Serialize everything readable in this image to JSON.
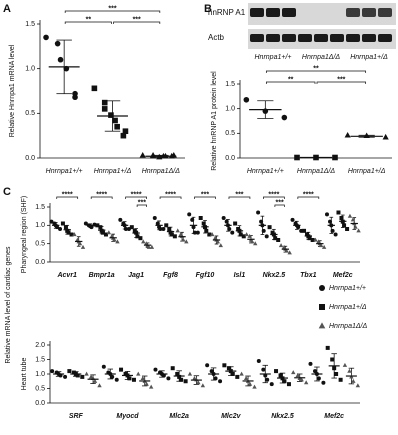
{
  "figure": {
    "panels": [
      "A",
      "B",
      "C"
    ],
    "shared_ylabel": "Relative mRNA level of cardiac genes"
  },
  "blot": {
    "rows": [
      "hnRNP A1",
      "Actb"
    ],
    "lanes": [
      "Hnrnpa1+/+",
      "Hnrnpa1Δ/Δ",
      "Hnrnpa1+/Δ"
    ]
  },
  "chart_data": [
    {
      "type": "dot",
      "ylabel": "Relative Hnrnpa1 mRNA level",
      "categories": [
        "Hnrnpa1+/+",
        "Hnrnpa1+/Δ",
        "Hnrnpa1Δ/Δ"
      ],
      "markers": [
        "circle",
        "square",
        "triangle"
      ],
      "color": "#111111",
      "values": [
        [
          1.35,
          1.28,
          1.1,
          1.0,
          0.72,
          0.68
        ],
        [
          0.78,
          0.62,
          0.55,
          0.48,
          0.42,
          0.35,
          0.3,
          0.25
        ],
        [
          0.03,
          0.02,
          0.03,
          0.01,
          0.02,
          0.02,
          0.03,
          0.02
        ]
      ],
      "means": [
        1.02,
        0.47,
        0.02
      ],
      "sds": [
        0.3,
        0.17,
        0.01
      ],
      "ylim": [
        0,
        1.5
      ],
      "yticks": [
        {
          "value": 0,
          "label": "0.0"
        },
        0.5,
        {
          "value": 1,
          "label": "1.0"
        },
        1.5
      ],
      "significance": [
        {
          "from": 0,
          "to": 1,
          "label": "**"
        },
        {
          "from": 0,
          "to": 2,
          "label": "***"
        },
        {
          "from": 1,
          "to": 2,
          "label": "***"
        }
      ]
    },
    {
      "type": "dot",
      "ylabel": "Relative hnRNP A1 protein level",
      "categories": [
        "Hnrnpa1+/+",
        "Hnrnpa1Δ/Δ",
        "Hnrnpa1+/Δ"
      ],
      "markers": [
        "circle",
        "square",
        "triangle"
      ],
      "color": "#111111",
      "values": [
        [
          1.18,
          0.95,
          0.82
        ],
        [
          0.01,
          0.01,
          0.01
        ],
        [
          0.46,
          0.45,
          0.42
        ]
      ],
      "means": [
        0.98,
        0.01,
        0.44
      ],
      "sds": [
        0.18,
        0,
        0.02
      ],
      "ylim": [
        0,
        1.5
      ],
      "yticks": [
        {
          "value": 0,
          "label": "0.0"
        },
        0.5,
        {
          "value": 1,
          "label": "1.0"
        },
        1.5
      ],
      "significance": [
        {
          "from": 0,
          "to": 1,
          "label": "**"
        },
        {
          "from": 0,
          "to": 2,
          "label": "**"
        },
        {
          "from": 1,
          "to": 2,
          "label": "***"
        }
      ]
    },
    {
      "type": "dot",
      "ylabel": "Pharyngeal region (SHF)",
      "legend": "right",
      "categories": [
        "Acvr1",
        "Bmpr1a",
        "Jag1",
        "Fgf8",
        "Fgf10",
        "Isl1",
        "Nkx2.5",
        "Tbx1",
        "Mef2c"
      ],
      "ylim": [
        0,
        1.5
      ],
      "yticks": [
        {
          "value": 0,
          "label": "0.0"
        },
        0.5,
        {
          "value": 1,
          "label": "1.0"
        },
        1.5
      ],
      "series": [
        {
          "name": "Hnrnpa1+/+",
          "marker": "circle",
          "color": "#111111",
          "values": [
            [
              1.1,
              1.05,
              1.0,
              0.95,
              0.9
            ],
            [
              1.05,
              1.0,
              0.98,
              0.95,
              1.02
            ],
            [
              1.15,
              1.05,
              1.0,
              0.9,
              0.9
            ],
            [
              1.2,
              1.05,
              0.95,
              0.9,
              0.9
            ],
            [
              1.3,
              1.15,
              0.95,
              0.8,
              0.8
            ],
            [
              1.2,
              1.1,
              1.0,
              0.9,
              0.8
            ],
            [
              1.35,
              1.1,
              1.0,
              0.85,
              0.7
            ],
            [
              1.15,
              1.05,
              1.0,
              0.95,
              0.85
            ],
            [
              1.3,
              1.1,
              1.0,
              0.85,
              0.75
            ]
          ],
          "means": [
            1.0,
            1.0,
            1.0,
            1.0,
            1.0,
            1.0,
            1.0,
            1.0,
            1.0
          ],
          "sds": [
            0.08,
            0.04,
            0.1,
            0.12,
            0.22,
            0.16,
            0.25,
            0.11,
            0.22
          ]
        },
        {
          "name": "Hnrnpa1+/Δ",
          "marker": "square",
          "color": "#111111",
          "values": [
            [
              1.05,
              0.95,
              0.85,
              0.8,
              0.75
            ],
            [
              1.0,
              0.95,
              0.85,
              0.8,
              0.75
            ],
            [
              0.95,
              0.85,
              0.8,
              0.7,
              0.65
            ],
            [
              1.0,
              0.9,
              0.8,
              0.75,
              0.7
            ],
            [
              1.2,
              1.05,
              0.95,
              0.85,
              0.75
            ],
            [
              1.05,
              0.9,
              0.85,
              0.75,
              0.7
            ],
            [
              0.95,
              0.8,
              0.75,
              0.65,
              0.6
            ],
            [
              0.85,
              0.75,
              0.7,
              0.65,
              0.6
            ],
            [
              1.35,
              1.2,
              1.1,
              1.0,
              0.9
            ]
          ],
          "means": [
            0.88,
            0.87,
            0.79,
            0.83,
            0.96,
            0.85,
            0.75,
            0.71,
            1.11
          ],
          "sds": [
            0.12,
            0.1,
            0.12,
            0.12,
            0.17,
            0.14,
            0.14,
            0.1,
            0.17
          ]
        },
        {
          "name": "Hnrnpa1Δ/Δ",
          "marker": "triangle",
          "color": "#555555",
          "values": [
            [
              0.75,
              0.6,
              0.55,
              0.5,
              0.4
            ],
            [
              0.8,
              0.7,
              0.65,
              0.6,
              0.55
            ],
            [
              0.55,
              0.5,
              0.45,
              0.4,
              0.4
            ],
            [
              0.85,
              0.75,
              0.7,
              0.6,
              0.55
            ],
            [
              0.75,
              0.65,
              0.6,
              0.55,
              0.45
            ],
            [
              0.75,
              0.7,
              0.6,
              0.55,
              0.5
            ],
            [
              0.45,
              0.4,
              0.35,
              0.3,
              0.25
            ],
            [
              0.6,
              0.55,
              0.5,
              0.45,
              0.4
            ],
            [
              1.25,
              1.15,
              1.05,
              0.95,
              0.85
            ]
          ],
          "means": [
            0.56,
            0.66,
            0.46,
            0.69,
            0.6,
            0.62,
            0.35,
            0.5,
            1.05
          ],
          "sds": [
            0.13,
            0.1,
            0.06,
            0.12,
            0.11,
            0.1,
            0.08,
            0.08,
            0.16
          ]
        }
      ],
      "significance": [
        {
          "category": 0,
          "from": 0,
          "to": 2,
          "label": "****"
        },
        {
          "category": 1,
          "from": 0,
          "to": 2,
          "label": "****"
        },
        {
          "category": 2,
          "from": 0,
          "to": 2,
          "label": "****"
        },
        {
          "category": 2,
          "from": 1,
          "to": 2,
          "label": "***"
        },
        {
          "category": 3,
          "from": 0,
          "to": 2,
          "label": "****"
        },
        {
          "category": 4,
          "from": 0,
          "to": 2,
          "label": "***"
        },
        {
          "category": 5,
          "from": 0,
          "to": 2,
          "label": "***"
        },
        {
          "category": 6,
          "from": 0,
          "to": 2,
          "label": "****"
        },
        {
          "category": 6,
          "from": 1,
          "to": 2,
          "label": "***"
        },
        {
          "category": 7,
          "from": 0,
          "to": 2,
          "label": "****"
        }
      ]
    },
    {
      "type": "dot",
      "ylabel": "Heart tube",
      "categories": [
        "SRF",
        "Myocd",
        "Mlc2a",
        "Mlc2v",
        "Nkx2.5",
        "Mef2c"
      ],
      "ylim": [
        0,
        2
      ],
      "yticks": [
        {
          "value": 0,
          "label": "0.0"
        },
        0.5,
        {
          "value": 1,
          "label": "1.0"
        },
        1.5,
        {
          "value": 2,
          "label": "2.0"
        }
      ],
      "series": [
        {
          "marker": "circle",
          "color": "#111111",
          "values": [
            [
              1.1,
              1.05,
              1.0,
              0.95,
              0.9
            ],
            [
              1.25,
              1.05,
              1.0,
              0.9,
              0.8
            ],
            [
              1.15,
              1.05,
              1.0,
              0.95,
              0.85
            ],
            [
              1.3,
              1.1,
              1.0,
              0.85,
              0.75
            ],
            [
              1.45,
              1.15,
              0.95,
              0.8,
              0.65
            ],
            [
              1.35,
              1.1,
              1.0,
              0.85,
              0.7
            ]
          ],
          "means": [
            1.0,
            1.0,
            1.0,
            1.0,
            1.0,
            1.0
          ],
          "sds": [
            0.08,
            0.17,
            0.11,
            0.21,
            0.3,
            0.24
          ]
        },
        {
          "marker": "square",
          "color": "#111111",
          "values": [
            [
              1.1,
              1.05,
              1.0,
              0.95,
              0.9
            ],
            [
              1.15,
              1.0,
              0.95,
              0.85,
              0.8
            ],
            [
              1.2,
              1.0,
              0.9,
              0.8,
              0.75
            ],
            [
              1.3,
              1.2,
              1.1,
              1.0,
              0.9
            ],
            [
              1.1,
              0.95,
              0.85,
              0.75,
              0.65
            ],
            [
              1.9,
              1.5,
              1.2,
              1.0,
              0.8
            ]
          ],
          "means": [
            1.0,
            0.95,
            0.93,
            1.1,
            0.86,
            1.28
          ],
          "sds": [
            0.08,
            0.14,
            0.18,
            0.15,
            0.17,
            0.42
          ]
        },
        {
          "marker": "triangle",
          "color": "#555555",
          "values": [
            [
              1.0,
              0.9,
              0.85,
              0.75,
              0.6
            ],
            [
              1.0,
              0.85,
              0.75,
              0.65,
              0.55
            ],
            [
              1.0,
              0.85,
              0.8,
              0.7,
              0.6
            ],
            [
              1.0,
              0.85,
              0.75,
              0.65,
              0.55
            ],
            [
              1.05,
              0.95,
              0.85,
              0.8,
              0.7
            ],
            [
              1.3,
              1.1,
              0.9,
              0.75,
              0.6
            ]
          ],
          "means": [
            0.82,
            0.76,
            0.79,
            0.76,
            0.87,
            0.93
          ],
          "sds": [
            0.15,
            0.17,
            0.15,
            0.17,
            0.13,
            0.27
          ]
        }
      ]
    }
  ]
}
